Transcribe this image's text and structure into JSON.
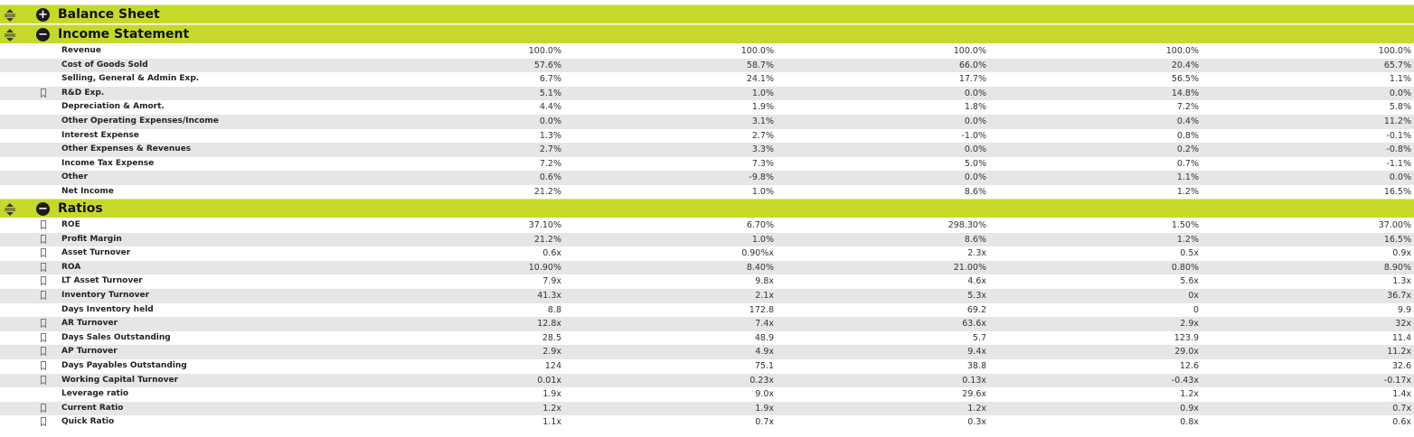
{
  "sections": {
    "balance_sheet": {
      "title": "Balance Sheet",
      "toggle": "+"
    },
    "income_statement": {
      "title": "Income Statement",
      "toggle": "−"
    },
    "ratios": {
      "title": "Ratios",
      "toggle": "−"
    }
  },
  "income_rows": [
    {
      "label": "Revenue",
      "values": [
        "100.0%",
        "100.0%",
        "100.0%",
        "100.0%",
        "100.0%"
      ]
    },
    {
      "label": "Cost of Goods Sold",
      "values": [
        "57.6%",
        "58.7%",
        "66.0%",
        "20.4%",
        "65.7%"
      ]
    },
    {
      "label": "Selling, General & Admin Exp.",
      "values": [
        "6.7%",
        "24.1%",
        "17.7%",
        "56.5%",
        "1.1%"
      ]
    },
    {
      "label": "R&D Exp.",
      "values": [
        "5.1%",
        "1.0%",
        "0.0%",
        "14.8%",
        "0.0%"
      ]
    },
    {
      "label": "Depreciation & Amort.",
      "values": [
        "4.4%",
        "1.9%",
        "1.8%",
        "7.2%",
        "5.8%"
      ]
    },
    {
      "label": "Other Operating Expenses/Income",
      "values": [
        "0.0%",
        "3.1%",
        "0.0%",
        "0.4%",
        "11.2%"
      ]
    },
    {
      "label": "Interest Expense",
      "values": [
        "1.3%",
        "2.7%",
        "-1.0%",
        "0.8%",
        "-0.1%"
      ]
    },
    {
      "label": "Other Expenses & Revenues",
      "values": [
        "2.7%",
        "3.3%",
        "0.0%",
        "0.2%",
        "-0.8%"
      ]
    },
    {
      "label": "Income Tax Expense",
      "values": [
        "7.2%",
        "7.3%",
        "5.0%",
        "0.7%",
        "-1.1%"
      ]
    },
    {
      "label": "Other",
      "values": [
        "0.6%",
        "-9.8%",
        "0.0%",
        "1.1%",
        "0.0%"
      ]
    },
    {
      "label": "Net Income",
      "values": [
        "21.2%",
        "1.0%",
        "8.6%",
        "1.2%",
        "16.5%"
      ]
    }
  ],
  "ratio_rows": [
    {
      "label": "ROE",
      "values": [
        "37.10%",
        "6.70%",
        "298.30%",
        "1.50%",
        "37.00%"
      ]
    },
    {
      "label": "Profit Margin",
      "values": [
        "21.2%",
        "1.0%",
        "8.6%",
        "1.2%",
        "16.5%"
      ]
    },
    {
      "label": "Asset Turnover",
      "values": [
        "0.6x",
        "0.90%x",
        "2.3x",
        "0.5x",
        "0.9x"
      ]
    },
    {
      "label": "ROA",
      "values": [
        "10.90%",
        "8.40%",
        "21.00%",
        "0.80%",
        "8.90%"
      ]
    },
    {
      "label": "LT Asset Turnover",
      "values": [
        "7.9x",
        "9.8x",
        "4.6x",
        "5.6x",
        "1.3x"
      ]
    },
    {
      "label": "Inventory Turnover",
      "values": [
        "41.3x",
        "2.1x",
        "5.3x",
        "0x",
        "36.7x"
      ]
    },
    {
      "label": "Days Inventory held",
      "values": [
        "8.8",
        "172.8",
        "69.2",
        "0",
        "9.9"
      ]
    },
    {
      "label": "AR Turnover",
      "values": [
        "12.8x",
        "7.4x",
        "63.6x",
        "2.9x",
        "32x"
      ]
    },
    {
      "label": "Days Sales Outstanding",
      "values": [
        "28.5",
        "48.9",
        "5.7",
        "123.9",
        "11.4"
      ]
    },
    {
      "label": "AP Turnover",
      "values": [
        "2.9x",
        "4.9x",
        "9.4x",
        "29.0x",
        "11.2x"
      ]
    },
    {
      "label": "Days Payables Outstanding",
      "values": [
        "124",
        "75.1",
        "38.8",
        "12.6",
        "32.6"
      ]
    },
    {
      "label": "Working Capital Turnover",
      "values": [
        "0.01x",
        "0.23x",
        "0.13x",
        "-0.43x",
        "-0.17x"
      ]
    },
    {
      "label": "Leverage ratio",
      "values": [
        "1.9x",
        "9.0x",
        "29.6x",
        "1.2x",
        "1.4x"
      ]
    },
    {
      "label": "Current Ratio",
      "values": [
        "1.2x",
        "1.9x",
        "1.2x",
        "0.9x",
        "0.7x"
      ]
    },
    {
      "label": "Quick Ratio",
      "values": [
        "1.1x",
        "0.7x",
        "0.3x",
        "0.8x",
        "0.6x"
      ]
    }
  ]
}
